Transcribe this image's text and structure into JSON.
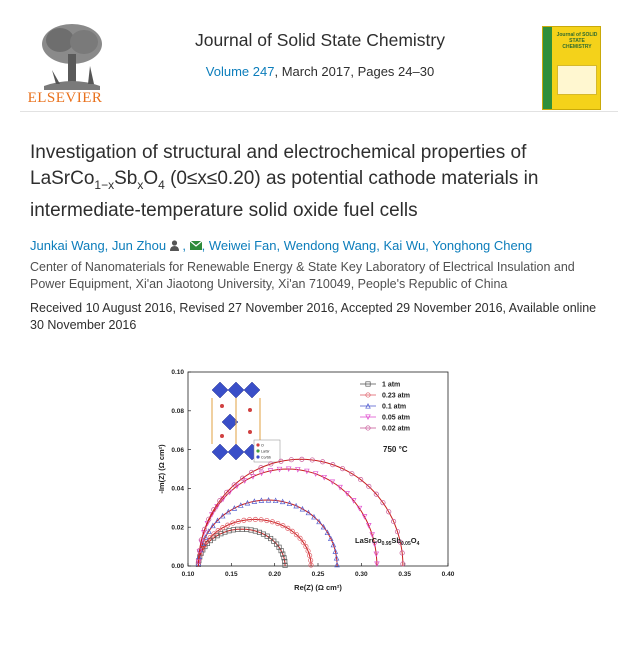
{
  "header": {
    "publisher": "ELSEVIER",
    "journal_title": "Journal of Solid State Chemistry",
    "volume_link": "Volume 247",
    "issue_details": ", March 2017, Pages 24–30",
    "cover_title": "Journal of SOLID STATE CHEMISTRY"
  },
  "article": {
    "title_part1": "Investigation of structural and electrochemical properties of LaSrCo",
    "title_sub1": "1−x",
    "title_part2": "Sb",
    "title_sub2": "x",
    "title_part3": "O",
    "title_sub3": "4",
    "title_part4": " (0≤x≤0.20) as potential cathode materials in intermediate-temperature solid oxide fuel cells",
    "authors": [
      {
        "name": "Junkai Wang",
        "sep": ", "
      },
      {
        "name": "Jun Zhou",
        "sep": ""
      },
      {
        "name": "Weiwei Fan",
        "sep": ", "
      },
      {
        "name": "Wendong Wang",
        "sep": ", "
      },
      {
        "name": "Kai Wu",
        "sep": ", "
      },
      {
        "name": "Yonghong Cheng",
        "sep": ""
      }
    ],
    "affiliation": "Center of Nanomaterials for Renewable Energy & State Key Laboratory of Electrical Insulation and Power Equipment, Xi'an Jiaotong University, Xi'an 710049, People's Republic of China",
    "history": "Received 10 August 2016, Revised 27 November 2016, Accepted 29 November 2016, Available online 30 November 2016"
  },
  "colors": {
    "link": "#0c7dbb",
    "publisher_orange": "#e9711c",
    "cover_yellow": "#f4d21a",
    "cover_green": "#2f8f3a"
  },
  "chart_data": {
    "type": "scatter",
    "xlabel": "Re(Z) (Ω cm²)",
    "ylabel": "-Im(Z) (Ω cm²)",
    "xlim": [
      0.1,
      0.4
    ],
    "ylim": [
      0.0,
      0.1
    ],
    "xticks": [
      "0.10",
      "0.15",
      "0.20",
      "0.25",
      "0.30",
      "0.35",
      "0.40"
    ],
    "yticks": [
      "0.00",
      "0.02",
      "0.04",
      "0.06",
      "0.08",
      "0.10"
    ],
    "temperature_label": "750 °C",
    "sample_label_main": "LaSrCo",
    "sample_label_sub1": "0.95",
    "sample_label_mid": "Sb",
    "sample_label_sub2": "0.05",
    "sample_label_end": "O",
    "sample_label_sub3": "4",
    "inset_legend": [
      "O",
      "La/Sr",
      "Co/Sb"
    ],
    "series": [
      {
        "name": "1 atm",
        "color": "#5a5a5a",
        "marker": "square",
        "r0": 0.112,
        "r1": 0.212,
        "peak": 0.019
      },
      {
        "name": "0.23 atm",
        "color": "#e0606a",
        "marker": "circle",
        "r0": 0.112,
        "r1": 0.242,
        "peak": 0.024
      },
      {
        "name": "0.1 atm",
        "color": "#5560d0",
        "marker": "triangle",
        "r0": 0.112,
        "r1": 0.272,
        "peak": 0.034
      },
      {
        "name": "0.05 atm",
        "color": "#e050d0",
        "marker": "triangle-down",
        "r0": 0.112,
        "r1": 0.318,
        "peak": 0.05
      },
      {
        "name": "0.02 atm",
        "color": "#c85a9a",
        "marker": "circle",
        "r0": 0.112,
        "r1": 0.348,
        "peak": 0.055
      }
    ]
  }
}
